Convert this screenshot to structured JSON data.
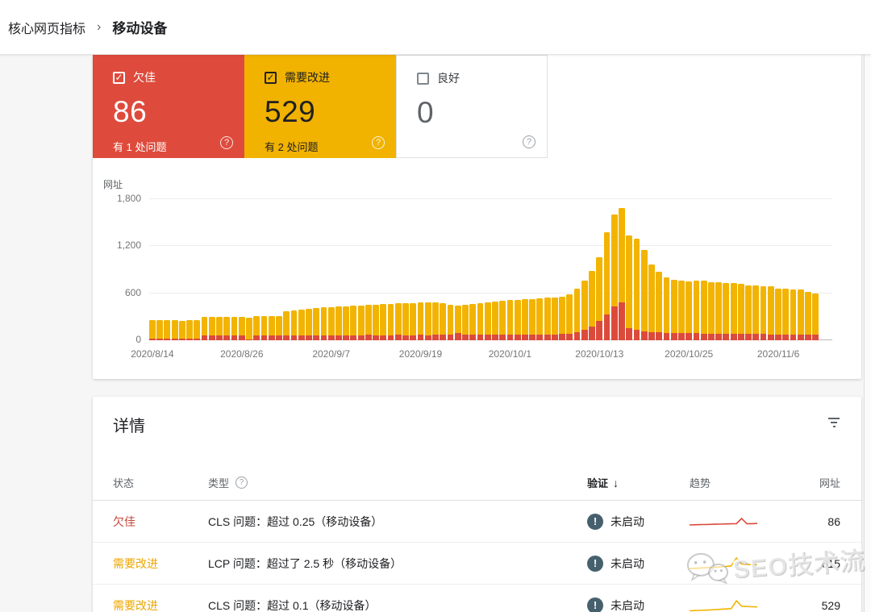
{
  "breadcrumb": {
    "parent": "核心网页指标",
    "current": "移动设备"
  },
  "icons": {
    "help": "?",
    "check": "✓",
    "separator": "›",
    "sort_desc": "↓",
    "exclamation": "!"
  },
  "cards": [
    {
      "label": "欠佳",
      "value": "86",
      "note": "有 1 处问题",
      "checked": true,
      "bg": "#de4b3c"
    },
    {
      "label": "需要改进",
      "value": "529",
      "note": "有 2 处问题",
      "checked": true,
      "bg": "#f1b200"
    },
    {
      "label": "良好",
      "value": "0",
      "note": "",
      "checked": false,
      "bg": "#ffffff"
    }
  ],
  "chart_data": {
    "type": "bar",
    "stacked": true,
    "ylabel": "网址",
    "ylim": [
      0,
      1800
    ],
    "yticks": [
      0,
      600,
      1200,
      1800
    ],
    "ytick_labels": [
      "0",
      "600",
      "1,200",
      "1,800"
    ],
    "xtick_labels": [
      "2020/8/14",
      "2020/8/26",
      "2020/9/7",
      "2020/9/19",
      "2020/10/1",
      "2020/10/13",
      "2020/10/25",
      "2020/11/6"
    ],
    "xtick_indices": [
      0,
      12,
      24,
      36,
      48,
      60,
      72,
      84
    ],
    "x_start_date": "2020/8/14",
    "x_step_days": 1,
    "legend_position": "none",
    "grid": true,
    "series": [
      {
        "name": "欠佳",
        "color": "#dc4a3b",
        "values": [
          25,
          24,
          25,
          24,
          25,
          24,
          25,
          60,
          62,
          60,
          63,
          62,
          60,
          10,
          62,
          60,
          63,
          62,
          65,
          63,
          66,
          64,
          65,
          66,
          65,
          66,
          65,
          67,
          66,
          68,
          65,
          67,
          66,
          68,
          67,
          66,
          68,
          67,
          69,
          68,
          72,
          88,
          72,
          70,
          71,
          70,
          72,
          73,
          72,
          73,
          74,
          73,
          75,
          74,
          76,
          78,
          85,
          100,
          130,
          180,
          250,
          330,
          430,
          480,
          150,
          130,
          115,
          105,
          100,
          95,
          92,
          90,
          88,
          90,
          86,
          85,
          84,
          84,
          82,
          82,
          80,
          80,
          78,
          76,
          74,
          74,
          72,
          72,
          70,
          68
        ]
      },
      {
        "name": "需要改进",
        "color": "#f2b400",
        "values": [
          230,
          229,
          228,
          229,
          227,
          229,
          230,
          235,
          238,
          240,
          239,
          242,
          243,
          280,
          243,
          245,
          248,
          250,
          310,
          322,
          329,
          341,
          347,
          352,
          360,
          364,
          371,
          375,
          382,
          384,
          393,
          395,
          400,
          402,
          407,
          412,
          414,
          419,
          411,
          402,
          383,
          352,
          380,
          392,
          401,
          412,
          420,
          429,
          440,
          445,
          450,
          457,
          461,
          468,
          472,
          478,
          500,
          560,
          630,
          710,
          810,
          1050,
          1180,
          1210,
          1190,
          1170,
          1035,
          860,
          775,
          710,
          683,
          668,
          667,
          670,
          679,
          660,
          656,
          651,
          648,
          643,
          620,
          615,
          612,
          609,
          586,
          581,
          578,
          573,
          550,
          532
        ]
      }
    ]
  },
  "details": {
    "title": "详情",
    "columns": {
      "status": "状态",
      "type": "类型",
      "validation": "验证",
      "trend": "趋势",
      "urls": "网址"
    },
    "rows": [
      {
        "status": "欠佳",
        "type": "CLS 问题：超过 0.25（移动设备）",
        "validation": "未启动",
        "urls": "86",
        "trend_color": "#dc4a3b",
        "trend": [
          16,
          15.8,
          15.6,
          15.5,
          15.3,
          15.1,
          15,
          14.8,
          14.6,
          14.4,
          8,
          14.6,
          14.4,
          14.2
        ]
      },
      {
        "status": "需要改进",
        "type": "LCP 问题：超过了 2.5 秒（移动设备）",
        "validation": "未启动",
        "urls": "615",
        "trend_color": "#f2b400",
        "trend": [
          18,
          17.8,
          17.5,
          17.2,
          16.8,
          16.4,
          16,
          15.5,
          14.8,
          5,
          12.5,
          13,
          13.4,
          13.6
        ]
      },
      {
        "status": "需要改进",
        "type": "CLS 问题：超过 0.1（移动设备）",
        "validation": "未启动",
        "urls": "529",
        "trend_color": "#f2b400",
        "trend": [
          18.5,
          18.2,
          18,
          17.7,
          17.4,
          17,
          16.6,
          16.2,
          15.8,
          6,
          12.8,
          13.2,
          13.5,
          13.7
        ]
      }
    ]
  },
  "watermark": {
    "text": "SEO技术流"
  }
}
